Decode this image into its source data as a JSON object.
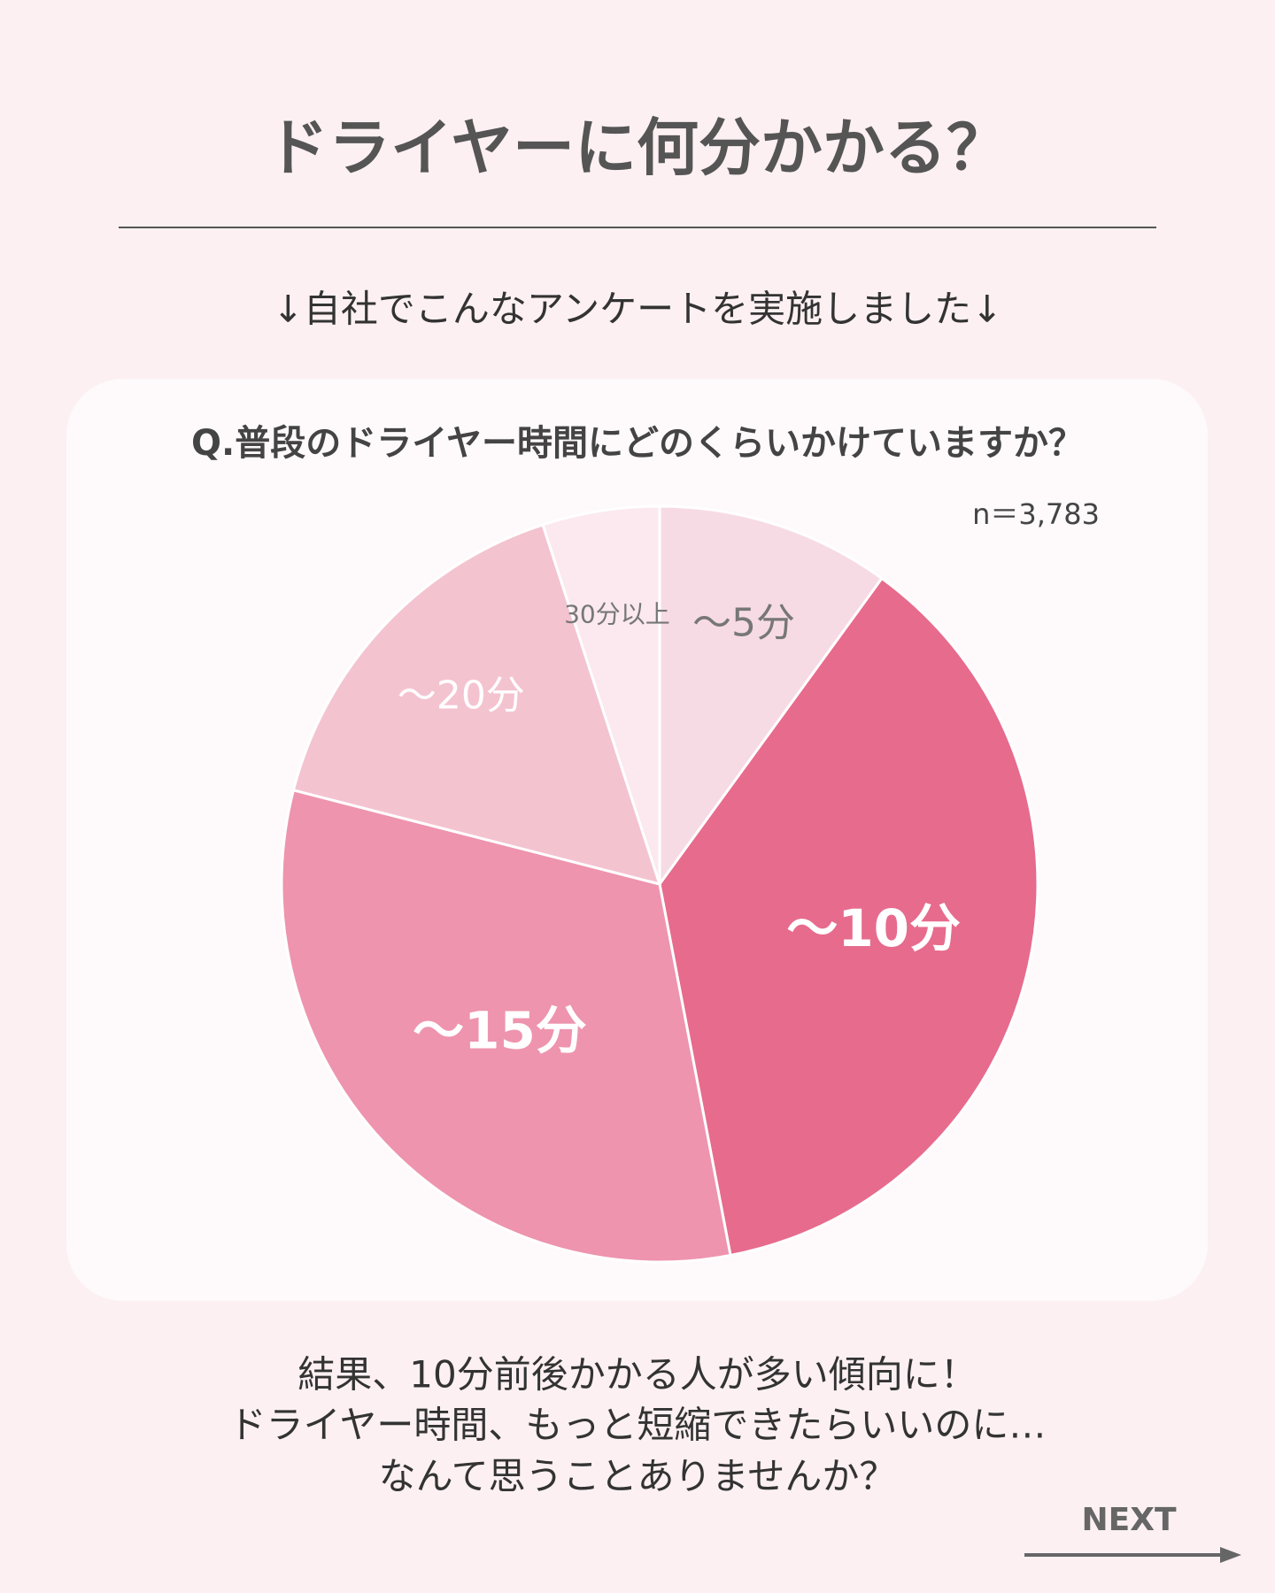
{
  "header": {
    "title": "ドライヤーに何分かかる？",
    "subtitle": "↓自社でこんなアンケートを実施しました↓"
  },
  "chart_data": {
    "type": "pie",
    "title": "Q.普段のドライヤー時間にどのくらいかけていますか？",
    "note": "n＝3,783",
    "categories": [
      "～5分",
      "～10分",
      "～15分",
      "～20分",
      "30分以上"
    ],
    "values": [
      10,
      37,
      32,
      16,
      5
    ],
    "colors": [
      "#f7dbe4",
      "#e76b8d",
      "#ee94ae",
      "#f4c3d0",
      "#fbe9ef"
    ],
    "label_colors": [
      "#777777",
      "#ffffff",
      "#ffffff",
      "#ffffff",
      "#777777"
    ]
  },
  "footer": {
    "lines": [
      "結果、10分前後かかる人が多い傾向に！",
      "ドライヤー時間、もっと短縮できたらいいのに…",
      "なんて思うことありませんか？"
    ],
    "next": "NEXT"
  }
}
